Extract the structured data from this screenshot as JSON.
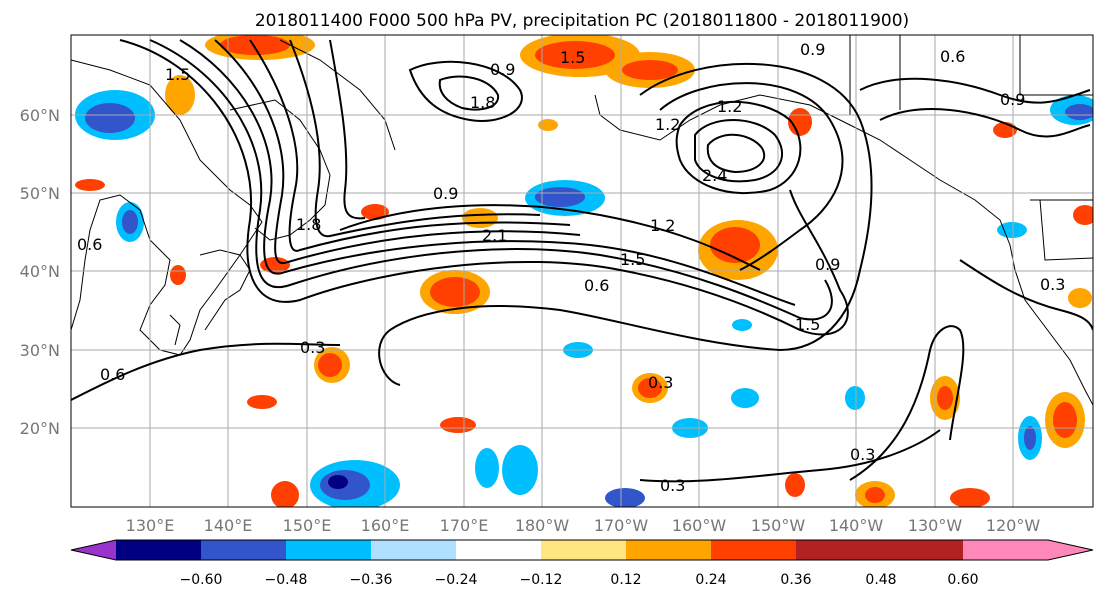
{
  "title": "2018011400 F000 500 hPa PV, precipitation PC (2018011800 - 2018011900)",
  "lon_labels": [
    "130°E",
    "140°E",
    "150°E",
    "160°E",
    "170°E",
    "180°W",
    "170°W",
    "160°W",
    "150°W",
    "140°W",
    "130°W",
    "120°W"
  ],
  "lat_labels": [
    "60°N",
    "50°N",
    "40°N",
    "30°N",
    "20°N"
  ],
  "colorbar": {
    "tick_labels": [
      "−0.60",
      "−0.48",
      "−0.36",
      "−0.24",
      "−0.12",
      "0.12",
      "0.24",
      "0.36",
      "0.48",
      "0.60"
    ],
    "colors": [
      "#9933cc",
      "#000080",
      "#3355cc",
      "#00bfff",
      "#b0e0ff",
      "#ffffff",
      "#ffe680",
      "#ffa500",
      "#ff4000",
      "#b22222",
      "#ff88bb"
    ]
  },
  "contour_labels": [
    "0.3",
    "0.6",
    "0.9",
    "1.2",
    "1.5",
    "1.8",
    "2.1",
    "2.4",
    "0.9",
    "1.5",
    "0.6",
    "0.3",
    "0.3",
    "0.3",
    "0.6",
    "0.9",
    "1.2",
    "1.5",
    "0.3",
    "0.6",
    "0.9",
    "1.5",
    "1.8",
    "0.9",
    "1.2"
  ],
  "colors": {
    "land_border": "#000000",
    "grid": "#aaaaaa",
    "contour": "#000000"
  }
}
